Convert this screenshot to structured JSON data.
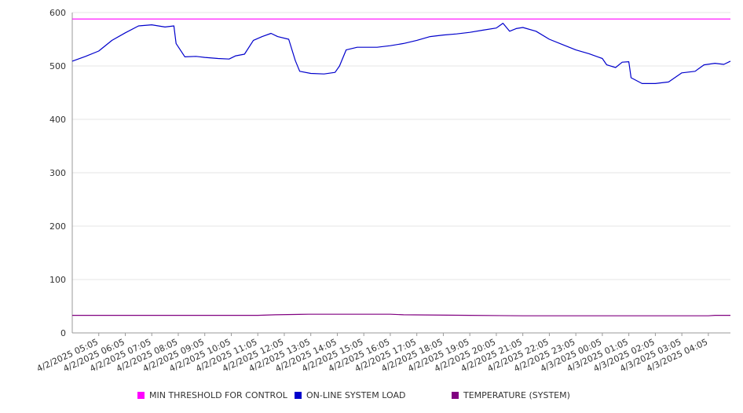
{
  "chart_data": {
    "type": "line",
    "title": "",
    "xlabel": "",
    "ylabel": "",
    "ylim": [
      0,
      600
    ],
    "yticks": [
      0,
      100,
      200,
      300,
      400,
      500,
      600
    ],
    "grid": true,
    "legend_position": "bottom",
    "x_tick_labels": [
      "4/2/2025 05:05",
      "4/2/2025 06:05",
      "4/2/2025 07:05",
      "4/2/2025 08:05",
      "4/2/2025 09:05",
      "4/2/2025 10:05",
      "4/2/2025 11:05",
      "4/2/2025 12:05",
      "4/2/2025 13:05",
      "4/2/2025 14:05",
      "4/2/2025 15:05",
      "4/2/2025 16:05",
      "4/2/2025 17:05",
      "4/2/2025 18:05",
      "4/2/2025 19:05",
      "4/2/2025 20:05",
      "4/2/2025 21:05",
      "4/2/2025 22:05",
      "4/2/2025 23:05",
      "4/3/2025 00:05",
      "4/3/2025 01:05",
      "4/3/2025 02:05",
      "4/3/2025 03:05",
      "4/3/2025 04:05"
    ],
    "x_start": "4/2/2025 04:05",
    "x_end": "4/3/2025 04:55",
    "series": [
      {
        "name": "MIN THRESHOLD FOR CONTROL",
        "color": "#ff00ff",
        "points": [
          [
            "4/2/2025 04:05",
            588
          ],
          [
            "4/3/2025 04:55",
            588
          ]
        ]
      },
      {
        "name": "ON-LINE SYSTEM LOAD",
        "color": "#0000cc",
        "points": [
          [
            "4/2/2025 04:05",
            509
          ],
          [
            "4/2/2025 04:35",
            518
          ],
          [
            "4/2/2025 05:05",
            528
          ],
          [
            "4/2/2025 05:35",
            548
          ],
          [
            "4/2/2025 06:05",
            562
          ],
          [
            "4/2/2025 06:35",
            575
          ],
          [
            "4/2/2025 07:05",
            577
          ],
          [
            "4/2/2025 07:35",
            573
          ],
          [
            "4/2/2025 07:55",
            575
          ],
          [
            "4/2/2025 08:00",
            542
          ],
          [
            "4/2/2025 08:20",
            517
          ],
          [
            "4/2/2025 08:45",
            518
          ],
          [
            "4/2/2025 09:05",
            516
          ],
          [
            "4/2/2025 09:35",
            514
          ],
          [
            "4/2/2025 10:00",
            513
          ],
          [
            "4/2/2025 10:15",
            519
          ],
          [
            "4/2/2025 10:35",
            522
          ],
          [
            "4/2/2025 10:55",
            548
          ],
          [
            "4/2/2025 11:15",
            555
          ],
          [
            "4/2/2025 11:35",
            561
          ],
          [
            "4/2/2025 11:50",
            555
          ],
          [
            "4/2/2025 12:15",
            550
          ],
          [
            "4/2/2025 12:30",
            510
          ],
          [
            "4/2/2025 12:40",
            490
          ],
          [
            "4/2/2025 13:05",
            486
          ],
          [
            "4/2/2025 13:35",
            485
          ],
          [
            "4/2/2025 14:00",
            488
          ],
          [
            "4/2/2025 14:10",
            500
          ],
          [
            "4/2/2025 14:25",
            530
          ],
          [
            "4/2/2025 14:50",
            535
          ],
          [
            "4/2/2025 15:05",
            535
          ],
          [
            "4/2/2025 15:35",
            535
          ],
          [
            "4/2/2025 16:05",
            538
          ],
          [
            "4/2/2025 16:35",
            542
          ],
          [
            "4/2/2025 17:05",
            548
          ],
          [
            "4/2/2025 17:35",
            555
          ],
          [
            "4/2/2025 18:05",
            558
          ],
          [
            "4/2/2025 18:35",
            560
          ],
          [
            "4/2/2025 19:05",
            563
          ],
          [
            "4/2/2025 19:35",
            567
          ],
          [
            "4/2/2025 20:05",
            571
          ],
          [
            "4/2/2025 20:20",
            580
          ],
          [
            "4/2/2025 20:35",
            565
          ],
          [
            "4/2/2025 20:50",
            570
          ],
          [
            "4/2/2025 21:05",
            572
          ],
          [
            "4/2/2025 21:35",
            565
          ],
          [
            "4/2/2025 22:05",
            550
          ],
          [
            "4/2/2025 22:35",
            540
          ],
          [
            "4/2/2025 23:05",
            530
          ],
          [
            "4/2/2025 23:35",
            523
          ],
          [
            "4/3/2025 00:05",
            514
          ],
          [
            "4/3/2025 00:15",
            502
          ],
          [
            "4/3/2025 00:35",
            497
          ],
          [
            "4/3/2025 00:50",
            507
          ],
          [
            "4/3/2025 01:05",
            508
          ],
          [
            "4/3/2025 01:10",
            478
          ],
          [
            "4/3/2025 01:35",
            467
          ],
          [
            "4/3/2025 02:05",
            467
          ],
          [
            "4/3/2025 02:35",
            470
          ],
          [
            "4/3/2025 03:05",
            487
          ],
          [
            "4/3/2025 03:35",
            490
          ],
          [
            "4/3/2025 03:55",
            502
          ],
          [
            "4/3/2025 04:20",
            505
          ],
          [
            "4/3/2025 04:40",
            503
          ],
          [
            "4/3/2025 04:55",
            509
          ]
        ]
      },
      {
        "name": "TEMPERATURE (SYSTEM)",
        "color": "#800080",
        "points": [
          [
            "4/2/2025 04:05",
            33
          ],
          [
            "4/2/2025 11:05",
            33
          ],
          [
            "4/2/2025 11:45",
            34
          ],
          [
            "4/2/2025 13:00",
            35
          ],
          [
            "4/2/2025 13:35",
            35
          ],
          [
            "4/2/2025 14:00",
            35
          ],
          [
            "4/2/2025 16:05",
            35
          ],
          [
            "4/2/2025 16:35",
            34
          ],
          [
            "4/2/2025 19:05",
            33
          ],
          [
            "4/2/2025 21:05",
            32
          ],
          [
            "4/2/2025 23:05",
            32
          ],
          [
            "4/3/2025 04:05",
            32
          ],
          [
            "4/3/2025 04:20",
            33
          ],
          [
            "4/3/2025 04:55",
            33
          ]
        ]
      }
    ]
  }
}
